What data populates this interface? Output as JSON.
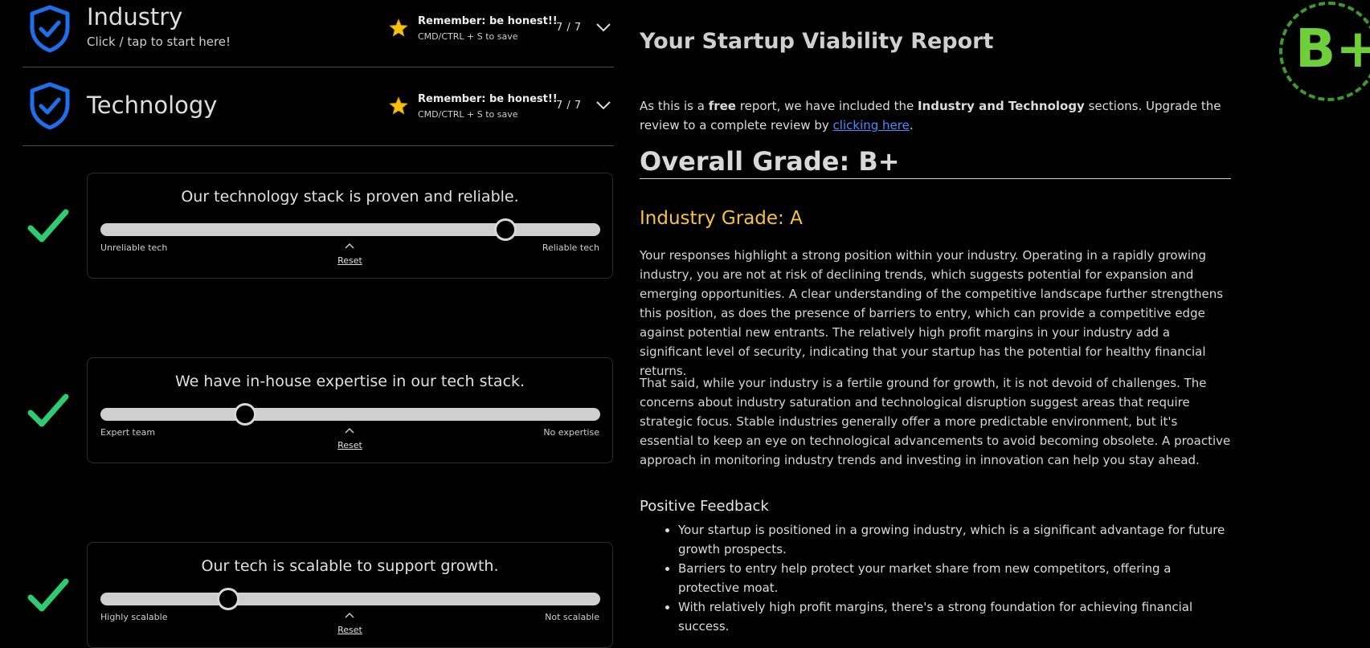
{
  "sections": [
    {
      "title": "Industry",
      "subtitle": "Click / tap to start here!",
      "reminder": "Remember: be honest!!",
      "shortcut": "CMD/CTRL + S to save",
      "count": "7 / 7"
    },
    {
      "title": "Technology",
      "subtitle": "",
      "reminder": "Remember: be honest!!",
      "shortcut": "CMD/CTRL + S to save",
      "count": "7 / 7"
    }
  ],
  "questions": [
    {
      "text": "Our technology stack is proven and reliable.",
      "left_label": "Unreliable tech",
      "right_label": "Reliable tech",
      "value": 0.81,
      "reset": "Reset"
    },
    {
      "text": "We have in-house expertise in our tech stack.",
      "left_label": "Expert team",
      "right_label": "No expertise",
      "value": 0.29,
      "reset": "Reset"
    },
    {
      "text": "Our tech is scalable to support growth.",
      "left_label": "Highly scalable",
      "right_label": "Not scalable",
      "value": 0.255,
      "reset": "Reset"
    }
  ],
  "report": {
    "title": "Your Startup Viability Report",
    "intro_1": "As this is a ",
    "intro_free": "free",
    "intro_2": " report, we have included the ",
    "intro_sections": "Industry and Technology",
    "intro_3": " sections. Upgrade the review to a complete review by ",
    "intro_link": "clicking here",
    "intro_4": ".",
    "overall_grade": "Overall Grade: B+",
    "industry_grade": "Industry Grade: A",
    "paragraph_1": "Your responses highlight a strong position within your industry. Operating in a rapidly growing industry, you are not at risk of declining trends, which suggests potential for expansion and emerging opportunities. A clear understanding of the competitive landscape further strengthens this position, as does the presence of barriers to entry, which can provide a competitive edge against potential new entrants. The relatively high profit margins in your industry add a significant level of security, indicating that your startup has the potential for healthy financial returns.",
    "paragraph_2": "That said, while your industry is a fertile ground for growth, it is not devoid of challenges. The concerns about industry saturation and technological disruption suggest areas that require strategic focus. Stable industries generally offer a more predictable environment, but it's essential to keep an eye on technological advancements to avoid becoming obsolete. A proactive approach in monitoring industry trends and investing in innovation can help you stay ahead.",
    "positive_title": "Positive Feedback",
    "positive_items": [
      "Your startup is positioned in a growing industry, which is a significant advantage for future growth prospects.",
      "Barriers to entry help protect your market share from new competitors, offering a protective moat.",
      "With relatively high profit margins, there's a strong foundation for achieving financial success."
    ],
    "badge_grade": "B+"
  },
  "colors": {
    "shield": "#1f6feb",
    "check": "#2ecc71",
    "star": "#f4c20d",
    "grade_yellow": "#f6c343",
    "badge_green": "#6fcf3a",
    "link": "#4a8cff"
  },
  "icons": [
    "shield-check-icon",
    "star-icon",
    "chevron-down-icon",
    "check-icon",
    "caret-up-icon"
  ]
}
